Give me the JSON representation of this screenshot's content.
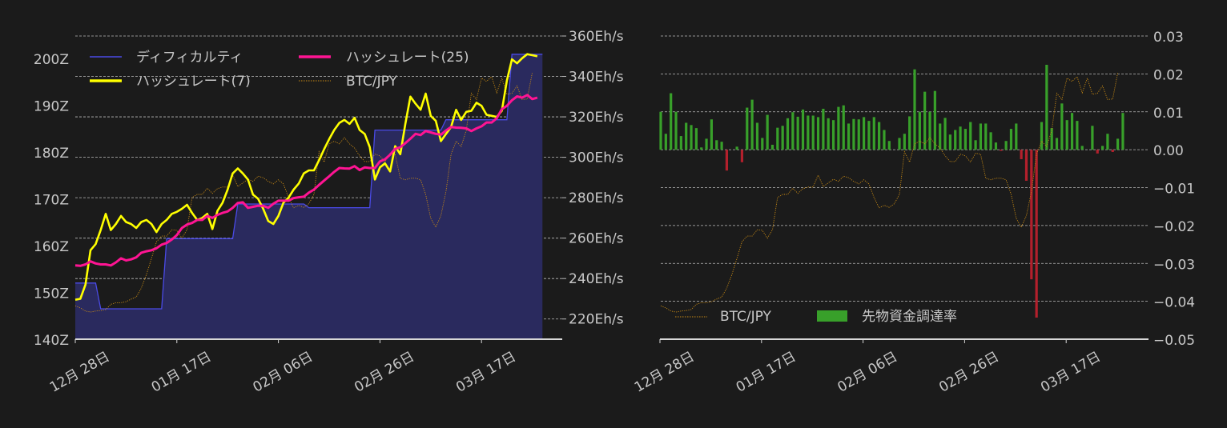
{
  "colors": {
    "background": "#1b1b1b",
    "difficulty_line": "#4a4ae6",
    "difficulty_fill": "#2a2a5e",
    "hashrate7": "#ffff00",
    "hashrate25": "#ff1493",
    "btc": "#c88a14",
    "funding_positive": "#38a02a",
    "funding_negative": "#b3202c"
  },
  "chart_data": [
    {
      "type": "line",
      "x_tick_labels": [
        "12月 28日",
        "01月 17日",
        "02月 06日",
        "02月 26日",
        "03月 17日"
      ],
      "x_tick_days": [
        0,
        20,
        40,
        60,
        80
      ],
      "left_axis": {
        "ylim": [
          140,
          204.8
        ],
        "ticks": [
          140,
          150,
          160,
          170,
          180,
          190,
          200
        ],
        "tick_labels": [
          "140Z",
          "150Z",
          "160Z",
          "170Z",
          "180Z",
          "190Z",
          "200Z"
        ]
      },
      "right_axis": {
        "ylim": [
          210,
          360
        ],
        "ticks": [
          220,
          240,
          260,
          280,
          300,
          320,
          340,
          360
        ],
        "tick_labels": [
          "220Eh/s",
          "240Eh/s",
          "260Eh/s",
          "280Eh/s",
          "300Eh/s",
          "320Eh/s",
          "340Eh/s",
          "360Eh/s"
        ]
      },
      "grid": true,
      "legend_position": "top-left",
      "series": [
        {
          "name": "ディフィカルティ",
          "axis": "left",
          "style": "area",
          "values": [
            152,
            152,
            152,
            152,
            152,
            146.5,
            146.5,
            146.5,
            146.5,
            146.5,
            146.5,
            146.5,
            146.5,
            146.5,
            146.5,
            146.5,
            146.5,
            146.5,
            161.5,
            161.5,
            161.5,
            161.5,
            161.5,
            161.5,
            161.5,
            161.5,
            161.5,
            161.5,
            161.5,
            161.5,
            161.5,
            161.5,
            168.9,
            168.9,
            168.9,
            168.9,
            168.9,
            168.9,
            168.9,
            168.9,
            168.9,
            168.9,
            168.9,
            168.9,
            168.9,
            168.9,
            168.1,
            168.1,
            168.1,
            168.1,
            168.1,
            168.1,
            168.1,
            168.1,
            168.1,
            168.1,
            168.1,
            168.1,
            168.1,
            184.7,
            184.7,
            184.7,
            184.7,
            184.7,
            184.7,
            184.7,
            184.7,
            184.7,
            184.7,
            184.7,
            184.7,
            184.7,
            184.7,
            186.9,
            186.9,
            186.9,
            186.9,
            186.9,
            186.9,
            186.9,
            186.9,
            186.9,
            186.9,
            186.9,
            186.9,
            186.9,
            200.9,
            200.9,
            200.9,
            200.9,
            200.9,
            200.9,
            200.9
          ]
        },
        {
          "name": "ハッシュレート(7)",
          "axis": "right",
          "values": [
            229.5,
            230,
            237,
            254,
            257,
            264,
            272,
            264,
            267,
            271,
            268,
            267,
            265,
            268,
            269,
            267,
            263,
            267,
            269,
            272,
            273,
            274.5,
            276.5,
            272.5,
            269,
            270,
            272,
            264.5,
            273.5,
            277.5,
            284,
            292,
            294.5,
            292,
            289,
            281.5,
            279.5,
            274.5,
            268.5,
            267,
            271,
            277.5,
            280,
            284,
            287,
            292,
            293.5,
            293.5,
            298.5,
            304,
            309,
            313.5,
            317,
            318.5,
            316.5,
            319.5,
            313.5,
            311.5,
            305,
            289,
            295,
            297,
            293,
            305.5,
            301.5,
            316.5,
            330,
            326.5,
            323.5,
            331.5,
            320.5,
            318,
            308,
            311.5,
            315,
            323.5,
            318.5,
            322.5,
            323,
            327,
            325.5,
            321,
            320.5,
            320,
            323,
            338,
            348.5,
            346.5,
            349,
            351,
            350.5,
            350
          ]
        },
        {
          "name": "ハッシュレート(25)",
          "axis": "right",
          "values": [
            246.5,
            246.3,
            247,
            248.5,
            247.5,
            247,
            247,
            246.5,
            248,
            250,
            249,
            249.5,
            250.5,
            252.8,
            253.5,
            254,
            255,
            256.8,
            257.6,
            259.3,
            261.5,
            265,
            266.7,
            267.5,
            269,
            269,
            271,
            270,
            271.5,
            272.5,
            273.2,
            275,
            277.4,
            277.7,
            275,
            275.5,
            276,
            276,
            275,
            277,
            278.5,
            278.5,
            278.5,
            279.8,
            280.2,
            280.5,
            282.5,
            284,
            286.3,
            288.5,
            290.6,
            292.8,
            294.7,
            294.5,
            294.4,
            295.6,
            293.7,
            295,
            294.7,
            294.7,
            298,
            299,
            301.3,
            304.2,
            305,
            307,
            309.2,
            311.6,
            311,
            313,
            312.3,
            311.6,
            311.2,
            313.2,
            315,
            314.7,
            314.6,
            314.3,
            313,
            314.3,
            315.3,
            317.2,
            317.2,
            319.3,
            323.8,
            325.5,
            328.2,
            330.1,
            329.5,
            330.8,
            328.8,
            329.5
          ]
        },
        {
          "name": "BTC/JPY",
          "axis": "hidden",
          "style": "dotted",
          "values_ref": "btc_jpy_millions"
        }
      ]
    },
    {
      "type": "bar",
      "x_tick_labels": [
        "12月 28日",
        "01月 17日",
        "02月 06日",
        "02月 26日",
        "03月 17日"
      ],
      "x_tick_days": [
        0,
        20,
        40,
        60,
        80
      ],
      "right_axis": {
        "ylim": [
          -0.05,
          0.03
        ],
        "ticks": [
          -0.05,
          -0.04,
          -0.03,
          -0.02,
          -0.01,
          0,
          0.01,
          0.02,
          0.03
        ],
        "tick_labels": [
          "−0.05",
          "−0.04",
          "−0.03",
          "−0.02",
          "−0.01",
          "0.00",
          "0.01",
          "0.02",
          "0.03"
        ]
      },
      "grid": true,
      "legend_position": "bottom-left",
      "series": [
        {
          "name": "先物資金調達率",
          "style": "bar",
          "values": [
            0.01,
            0.0042,
            0.0149,
            0.01,
            0.0036,
            0.0071,
            0.0065,
            0.0057,
            0.0006,
            0.0029,
            0.008,
            0.0025,
            0.0021,
            -0.0055,
            0,
            0.0008,
            -0.0033,
            0.0111,
            0.0132,
            0.0071,
            0.0031,
            0.0092,
            0.0013,
            0.0058,
            0.0063,
            0.0083,
            0.0099,
            0.0087,
            0.0106,
            0.009,
            0.009,
            0.0086,
            0.0108,
            0.0083,
            0.0078,
            0.0113,
            0.0117,
            0.0069,
            0.0081,
            0.008,
            0.0086,
            0.0076,
            0.0086,
            0.0073,
            0.0052,
            0.0023,
            0,
            0.0031,
            0.0042,
            0.0088,
            0.0212,
            0.01,
            0.0153,
            0.01,
            0.0155,
            0.0069,
            0.0084,
            0.004,
            0.0052,
            0.0061,
            0.0055,
            0.0073,
            0.0025,
            0.0069,
            0.0069,
            0.0046,
            0.0019,
            -0.0003,
            0.0023,
            0.0055,
            0.0069,
            -0.0025,
            -0.0082,
            -0.0342,
            -0.0443,
            0.0073,
            0.0224,
            0.0057,
            0.0031,
            0.0122,
            0.0078,
            0.0097,
            0.0076,
            0.001,
            0,
            0.0063,
            -0.001,
            0.001,
            0.0042,
            -0.0006,
            0.0029,
            0.0097
          ]
        },
        {
          "name": "BTC/JPY",
          "axis": "hidden",
          "style": "dotted",
          "values_ref": "btc_jpy_millions"
        }
      ]
    }
  ],
  "btc_jpy_millions": [
    6.32,
    6.28,
    6.22,
    6.2,
    6.22,
    6.23,
    6.25,
    6.35,
    6.38,
    6.38,
    6.4,
    6.45,
    6.49,
    6.66,
    6.92,
    7.23,
    7.55,
    7.66,
    7.66,
    7.78,
    7.77,
    7.62,
    7.78,
    8.4,
    8.46,
    8.46,
    8.58,
    8.48,
    8.57,
    8.6,
    8.6,
    8.83,
    8.61,
    8.68,
    8.75,
    8.71,
    8.81,
    8.78,
    8.71,
    8.66,
    8.74,
    8.66,
    8.4,
    8.2,
    8.25,
    8.21,
    8.28,
    8.46,
    9.28,
    9.08,
    9.43,
    9.48,
    9.43,
    9.55,
    9.43,
    9.35,
    9.2,
    9.09,
    9.09,
    9.23,
    9.2,
    9.08,
    9.25,
    9.23,
    8.77,
    8.74,
    8.77,
    8.77,
    8.74,
    8.46,
    8.0,
    7.83,
    8.05,
    8.51,
    9.23,
    9.48,
    9.38,
    9.69,
    10.4,
    10.28,
    10.69,
    10.63,
    10.72,
    10.41,
    10.69,
    10.38,
    10.4,
    10.54,
    10.28,
    10.29,
    10.8
  ],
  "legend": {
    "difficulty": "ディフィカルティ",
    "hashrate25": "ハッシュレート(25)",
    "hashrate7": "ハッシュレート(7)",
    "btc": "BTC/JPY",
    "funding": "先物資金調達率"
  }
}
